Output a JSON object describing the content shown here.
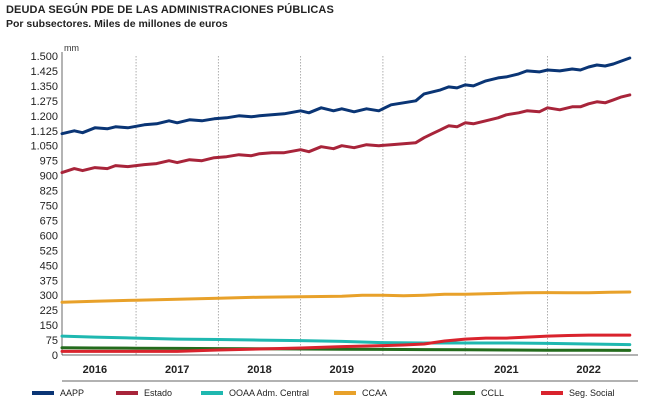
{
  "chart_data": {
    "type": "line",
    "title": "DEUDA SEGÚN PDE DE LAS ADMINISTRACIONES PÚBLICAS",
    "subtitle": "Por subsectores. Miles de millones de euros",
    "ylabel": "mm",
    "ylim": [
      0,
      1500
    ],
    "yticks": [
      0,
      75,
      150,
      225,
      300,
      375,
      450,
      525,
      600,
      675,
      750,
      825,
      900,
      975,
      1050,
      1125,
      1200,
      1275,
      1350,
      1425,
      1500
    ],
    "ytick_labels": [
      "0",
      "75",
      "150",
      "225",
      "300",
      "375",
      "450",
      "525",
      "600",
      "675",
      "750",
      "825",
      "900",
      "975",
      "1.050",
      "1.125",
      "1.200",
      "1.275",
      "1.350",
      "1.425",
      "1.500"
    ],
    "xlim": [
      2015.6,
      2022.6
    ],
    "x_categories": [
      "2016",
      "2017",
      "2018",
      "2019",
      "2020",
      "2021",
      "2022"
    ],
    "series": [
      {
        "name": "AAPP",
        "color": "#0a3575",
        "x": [
          2015.6,
          2015.75,
          2015.85,
          2016.0,
          2016.15,
          2016.25,
          2016.4,
          2016.6,
          2016.75,
          2016.9,
          2017.0,
          2017.15,
          2017.3,
          2017.45,
          2017.6,
          2017.75,
          2017.9,
          2018.0,
          2018.15,
          2018.3,
          2018.5,
          2018.6,
          2018.75,
          2018.9,
          2019.0,
          2019.15,
          2019.3,
          2019.45,
          2019.6,
          2019.75,
          2019.9,
          2020.0,
          2020.1,
          2020.2,
          2020.3,
          2020.4,
          2020.5,
          2020.6,
          2020.75,
          2020.9,
          2021.0,
          2021.15,
          2021.25,
          2021.4,
          2021.5,
          2021.65,
          2021.8,
          2021.9,
          2022.0,
          2022.1,
          2022.2,
          2022.3,
          2022.4,
          2022.5
        ],
        "y": [
          1110,
          1125,
          1115,
          1140,
          1135,
          1145,
          1140,
          1155,
          1160,
          1175,
          1165,
          1180,
          1175,
          1185,
          1190,
          1200,
          1195,
          1200,
          1205,
          1210,
          1225,
          1215,
          1240,
          1225,
          1235,
          1220,
          1235,
          1225,
          1255,
          1265,
          1275,
          1310,
          1320,
          1330,
          1345,
          1340,
          1355,
          1350,
          1375,
          1390,
          1395,
          1410,
          1425,
          1420,
          1430,
          1425,
          1435,
          1430,
          1445,
          1455,
          1450,
          1460,
          1475,
          1490
        ]
      },
      {
        "name": "Estado",
        "color": "#a8243a",
        "x": [
          2015.6,
          2015.75,
          2015.85,
          2016.0,
          2016.15,
          2016.25,
          2016.4,
          2016.6,
          2016.75,
          2016.9,
          2017.0,
          2017.15,
          2017.3,
          2017.45,
          2017.6,
          2017.75,
          2017.9,
          2018.0,
          2018.15,
          2018.3,
          2018.5,
          2018.6,
          2018.75,
          2018.9,
          2019.0,
          2019.15,
          2019.3,
          2019.45,
          2019.6,
          2019.75,
          2019.9,
          2020.0,
          2020.1,
          2020.2,
          2020.3,
          2020.4,
          2020.5,
          2020.6,
          2020.75,
          2020.9,
          2021.0,
          2021.15,
          2021.25,
          2021.4,
          2021.5,
          2021.65,
          2021.8,
          2021.9,
          2022.0,
          2022.1,
          2022.2,
          2022.3,
          2022.4,
          2022.5
        ],
        "y": [
          915,
          935,
          925,
          940,
          935,
          950,
          945,
          955,
          960,
          975,
          965,
          980,
          975,
          990,
          995,
          1005,
          1000,
          1010,
          1015,
          1015,
          1030,
          1020,
          1045,
          1035,
          1050,
          1040,
          1055,
          1050,
          1055,
          1060,
          1065,
          1090,
          1110,
          1130,
          1150,
          1145,
          1165,
          1160,
          1175,
          1190,
          1205,
          1215,
          1225,
          1220,
          1240,
          1230,
          1245,
          1245,
          1260,
          1270,
          1265,
          1280,
          1295,
          1305
        ]
      },
      {
        "name": "OOAA Adm. Central",
        "color": "#1fb8b0",
        "x": [
          2015.6,
          2016.0,
          2016.5,
          2017.0,
          2017.5,
          2018.0,
          2018.5,
          2019.0,
          2019.5,
          2020.0,
          2020.5,
          2021.0,
          2021.5,
          2022.0,
          2022.5
        ],
        "y": [
          95,
          90,
          85,
          80,
          78,
          75,
          72,
          68,
          62,
          60,
          60,
          60,
          58,
          55,
          52
        ]
      },
      {
        "name": "CCAA",
        "color": "#e8a12a",
        "x": [
          2015.6,
          2016.0,
          2016.5,
          2017.0,
          2017.5,
          2018.0,
          2018.5,
          2019.0,
          2019.25,
          2019.5,
          2019.75,
          2020.0,
          2020.25,
          2020.5,
          2020.75,
          2021.0,
          2021.25,
          2021.5,
          2021.75,
          2022.0,
          2022.25,
          2022.5
        ],
        "y": [
          265,
          270,
          275,
          280,
          285,
          290,
          292,
          295,
          300,
          300,
          297,
          300,
          305,
          305,
          307,
          310,
          312,
          313,
          312,
          312,
          315,
          316
        ]
      },
      {
        "name": "CCLL",
        "color": "#236b1c",
        "x": [
          2015.6,
          2016.0,
          2016.5,
          2017.0,
          2017.5,
          2018.0,
          2018.5,
          2019.0,
          2019.5,
          2020.0,
          2020.5,
          2021.0,
          2021.5,
          2022.0,
          2022.5
        ],
        "y": [
          36,
          35,
          34,
          33,
          32,
          31,
          30,
          29,
          28,
          27,
          26,
          25,
          24,
          24,
          23
        ]
      },
      {
        "name": "Seg. Social",
        "color": "#d9232d",
        "x": [
          2015.6,
          2016.0,
          2016.5,
          2017.0,
          2017.5,
          2018.0,
          2018.5,
          2019.0,
          2019.5,
          2019.75,
          2020.0,
          2020.25,
          2020.5,
          2020.75,
          2021.0,
          2021.25,
          2021.5,
          2021.75,
          2022.0,
          2022.25,
          2022.5
        ],
        "y": [
          18,
          18,
          18,
          18,
          25,
          30,
          35,
          42,
          47,
          50,
          55,
          70,
          80,
          85,
          85,
          90,
          95,
          98,
          100,
          100,
          100
        ]
      }
    ]
  }
}
